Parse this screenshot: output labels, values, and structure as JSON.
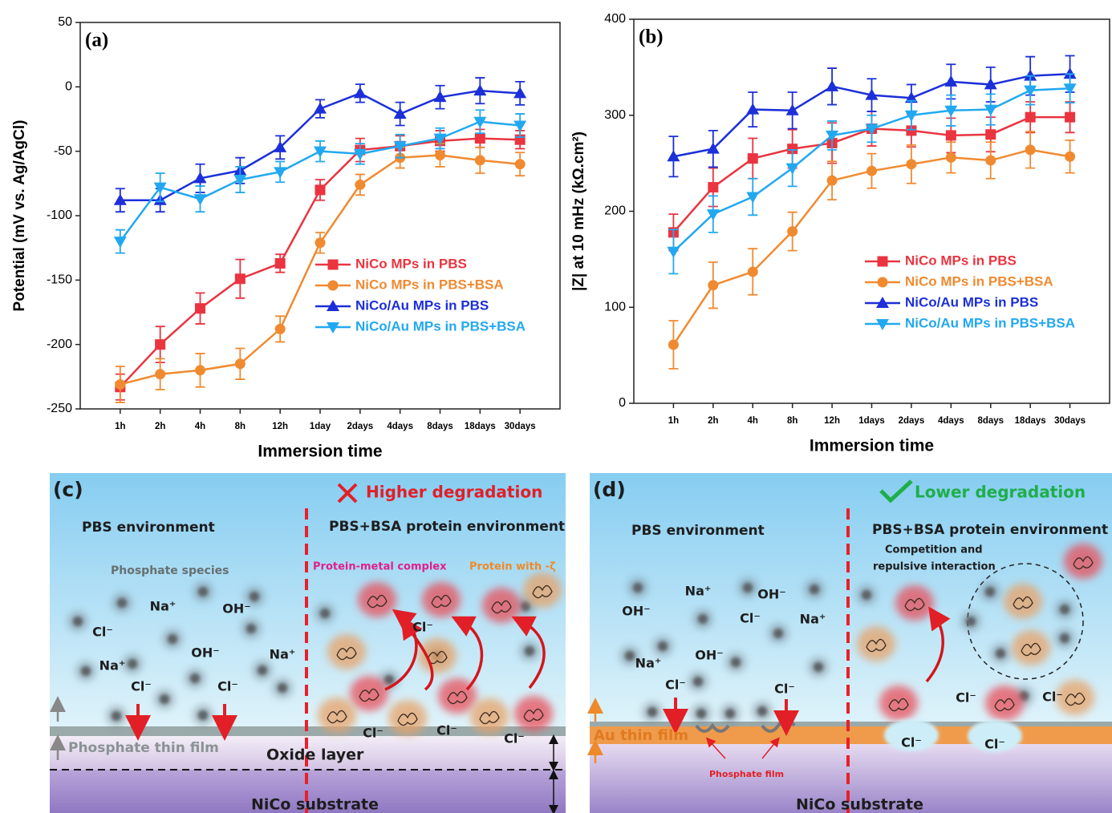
{
  "chart_data": [
    {
      "type": "line",
      "panel_label": "(a)",
      "x_label": "Immersion time",
      "y_label": "Potential (mV vs. Ag/AgCl)",
      "categories": [
        "1h",
        "2h",
        "4h",
        "8h",
        "12h",
        "1day",
        "2days",
        "4days",
        "8days",
        "18days",
        "30days"
      ],
      "ylim": [
        -250,
        50
      ],
      "yticks": [
        -250,
        -200,
        -150,
        -100,
        -50,
        0,
        50
      ],
      "legend": "center right",
      "series": [
        {
          "name": "NiCo MPs in PBS",
          "color": "#ea3440",
          "marker": "square",
          "values": [
            -233,
            -200,
            -172,
            -149,
            -137,
            -80,
            -49,
            -46,
            -42,
            -40,
            -41
          ],
          "errors": [
            10,
            14,
            12,
            15,
            7,
            8,
            9,
            8,
            8,
            7,
            7
          ]
        },
        {
          "name": "NiCo MPs in PBS+BSA",
          "color": "#f08a30",
          "marker": "circle",
          "values": [
            -231,
            -223,
            -220,
            -215,
            -188,
            -121,
            -76,
            -55,
            -53,
            -57,
            -60
          ],
          "errors": [
            14,
            12,
            13,
            12,
            10,
            8,
            8,
            8,
            9,
            10,
            9
          ]
        },
        {
          "name": "NiCo/Au MPs in PBS",
          "color": "#1c2fd8",
          "marker": "triangle-up",
          "values": [
            -88,
            -88,
            -71,
            -65,
            -47,
            -17,
            -5,
            -21,
            -8,
            -3,
            -5
          ],
          "errors": [
            9,
            9,
            11,
            10,
            9,
            7,
            7,
            9,
            9,
            10,
            9
          ]
        },
        {
          "name": "NiCo/Au MPs in PBS+BSA",
          "color": "#22a8f0",
          "marker": "triangle-down",
          "values": [
            -120,
            -78,
            -87,
            -72,
            -66,
            -50,
            -52,
            -46,
            -40,
            -27,
            -30
          ],
          "errors": [
            9,
            11,
            10,
            10,
            8,
            8,
            8,
            9,
            8,
            9,
            9
          ]
        }
      ]
    },
    {
      "type": "line",
      "panel_label": "(b)",
      "x_label": "Immersion time",
      "y_label": "|Z| at 10 mHz (kΩ.cm²)",
      "categories": [
        "1h",
        "2h",
        "4h",
        "8h",
        "12h",
        "1days",
        "2days",
        "4days",
        "8days",
        "18days",
        "30days"
      ],
      "ylim": [
        0,
        400
      ],
      "yticks": [
        0,
        100,
        200,
        300,
        400
      ],
      "legend": "lower right",
      "series": [
        {
          "name": "NiCo MPs in PBS",
          "color": "#ea3440",
          "marker": "square",
          "values": [
            178,
            225,
            255,
            265,
            271,
            286,
            284,
            279,
            280,
            298,
            298
          ],
          "errors": [
            19,
            20,
            21,
            20,
            21,
            18,
            17,
            18,
            18,
            16,
            16
          ]
        },
        {
          "name": "NiCo MPs in PBS+BSA",
          "color": "#f08a30",
          "marker": "circle",
          "values": [
            61,
            123,
            137,
            179,
            232,
            242,
            249,
            256,
            253,
            264,
            257
          ],
          "errors": [
            25,
            24,
            24,
            20,
            20,
            18,
            20,
            16,
            19,
            19,
            17
          ]
        },
        {
          "name": "NiCo/Au MPs in PBS",
          "color": "#1c2fd8",
          "marker": "triangle-up",
          "values": [
            257,
            265,
            306,
            305,
            330,
            321,
            318,
            335,
            332,
            341,
            343
          ],
          "errors": [
            21,
            19,
            18,
            19,
            19,
            17,
            14,
            18,
            18,
            20,
            19
          ]
        },
        {
          "name": "NiCo/Au MPs in PBS+BSA",
          "color": "#22a8f0",
          "marker": "triangle-down",
          "values": [
            158,
            197,
            215,
            245,
            279,
            286,
            300,
            305,
            306,
            326,
            328
          ],
          "errors": [
            23,
            19,
            19,
            19,
            15,
            14,
            15,
            16,
            16,
            15,
            15
          ]
        }
      ]
    }
  ],
  "diagrams": [
    {
      "label": "(c)",
      "status": "Higher degradation",
      "left_title": "PBS environment",
      "right_title": "PBS+BSA protein environment",
      "species_label": "Phosphate species",
      "complex_label": "Protein-metal complex",
      "protein_label": "Protein with -ζ",
      "film_label": "Phosphate thin film",
      "oxide_label": "Oxide layer",
      "substrate_label": "NiCo substrate",
      "ions": [
        "Na⁺",
        "OH⁻",
        "Cl⁻",
        "OH⁻",
        "Na⁺",
        "Na⁺",
        "Cl⁻",
        "Cl⁻",
        "Cl⁻",
        "Cl⁻",
        "Cl⁻",
        "Cl⁻"
      ]
    },
    {
      "label": "(d)",
      "status": "Lower degradation",
      "left_title": "PBS environment",
      "right_title": "PBS+BSA protein environment",
      "interaction_lines": [
        "Competition and",
        "repulsive interaction"
      ],
      "film_label": "Au thin film",
      "phosphate_label": "Phosphate film",
      "substrate_label": "NiCo substrate",
      "ions": [
        "Na⁺",
        "OH⁻",
        "OH⁻",
        "Cl⁻",
        "Na⁺",
        "Na⁺",
        "OH⁻",
        "Cl⁻",
        "Cl⁻",
        "Cl⁻",
        "Cl⁻",
        "Cl⁻",
        "Cl⁻"
      ]
    }
  ]
}
